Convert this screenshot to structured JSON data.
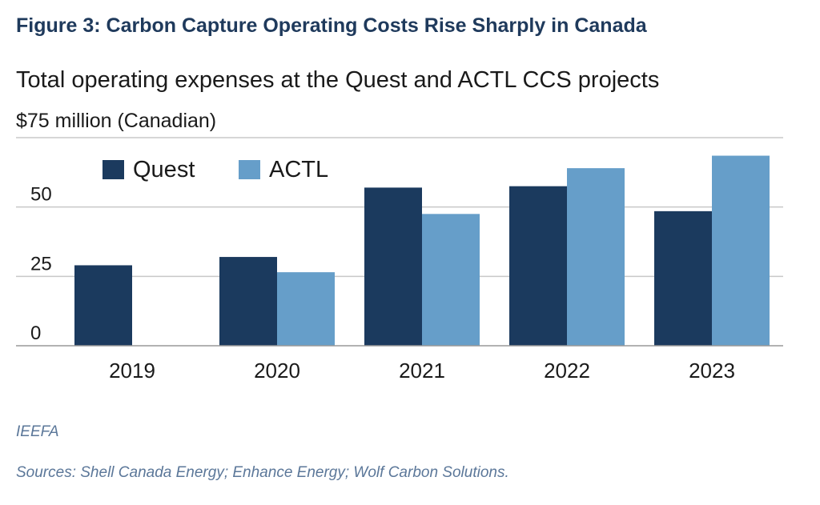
{
  "figure_title": "Figure 3: Carbon Capture Operating Costs Rise Sharply in Canada",
  "credit": "IEEFA",
  "sources": "Sources: Shell Canada Energy; Enhance Energy; Wolf Carbon Solutions.",
  "colors": {
    "quest": "#1b3a5e",
    "actl": "#669ec9",
    "grid": "#c8c8c8",
    "axis": "#999999"
  },
  "chart_data": {
    "type": "bar",
    "title": "Total operating expenses at the Quest and ACTL CCS projects",
    "ylabel": "$75 million (Canadian)",
    "categories": [
      "2019",
      "2020",
      "2021",
      "2022",
      "2023"
    ],
    "series": [
      {
        "name": "Quest",
        "values": [
          29,
          32,
          57,
          57.5,
          48.5
        ]
      },
      {
        "name": "ACTL",
        "values": [
          null,
          26.5,
          47.5,
          64,
          68.5
        ]
      }
    ],
    "yticks": [
      0,
      25,
      50
    ],
    "ylim": [
      0,
      75
    ],
    "grid": true,
    "legend": "top-left"
  }
}
